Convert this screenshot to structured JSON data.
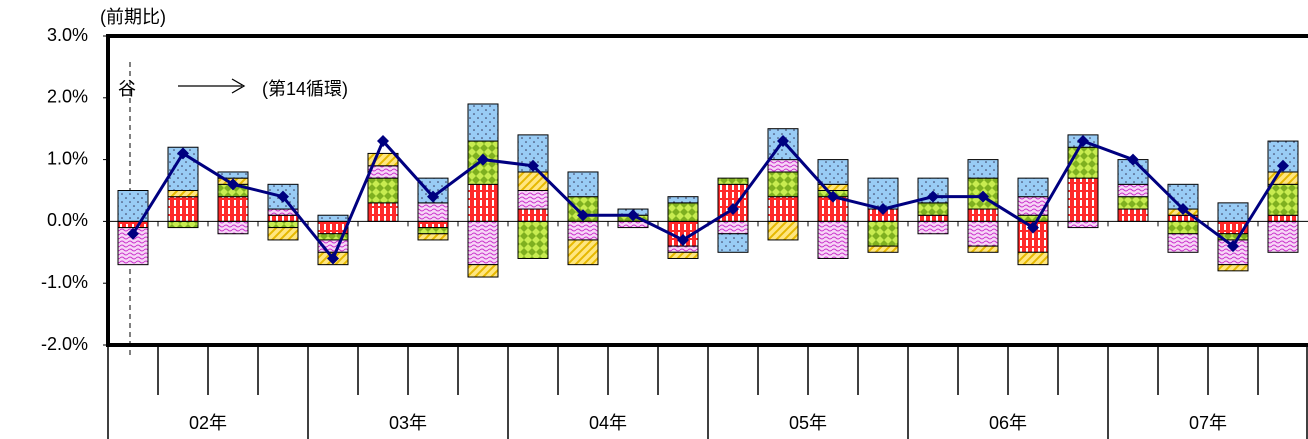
{
  "chart_data": {
    "type": "bar",
    "stacked": true,
    "y_label": "(前期比)",
    "annotations": [
      "谷",
      "(第14循環)"
    ],
    "categories": [
      null,
      null,
      null,
      null,
      null,
      null,
      null,
      null,
      null,
      null,
      null,
      null,
      null,
      null,
      null,
      null,
      null,
      null,
      null,
      null,
      null,
      null,
      null,
      null
    ],
    "year_labels": [
      "02年",
      "03年",
      "04年",
      "05年",
      "06年",
      "07年"
    ],
    "ylim": [
      -2,
      3
    ],
    "yticks": [
      {
        "value": -2,
        "label": "-2.0%"
      },
      {
        "value": -1,
        "label": "-1.0%"
      },
      {
        "value": 0,
        "label": "0.0%"
      },
      {
        "value": 1,
        "label": "1.0%"
      },
      {
        "value": 2,
        "label": "2.0%"
      },
      {
        "value": 3,
        "label": "3.0%"
      }
    ],
    "series": [
      {
        "color": "#ff2a2a",
        "pattern": "stripes",
        "values": [
          -0.1,
          0.4,
          0.4,
          0.1,
          -0.2,
          0.3,
          -0.1,
          0.6,
          0.2,
          0,
          0,
          -0.4,
          0.6,
          0.4,
          0.4,
          0.2,
          0.1,
          0.2,
          -0.5,
          0.7,
          0.2,
          0.1,
          -0.2,
          0.1
        ]
      },
      {
        "color": "#c8ec50",
        "pattern": "diamonds",
        "values": [
          0,
          -0.1,
          0.2,
          -0.1,
          -0.1,
          0.4,
          -0.1,
          0.7,
          -0.6,
          0.4,
          0.1,
          0.3,
          0.1,
          0.4,
          0.1,
          -0.4,
          0.2,
          0.5,
          0.1,
          0.5,
          0.2,
          -0.2,
          -0.1,
          0.5
        ]
      },
      {
        "color": "#f6d6f6",
        "pattern": "waves",
        "values": [
          -0.6,
          0,
          -0.2,
          0.1,
          -0.2,
          0.2,
          0.3,
          -0.7,
          0.3,
          -0.3,
          -0.1,
          -0.1,
          -0.2,
          0.2,
          -0.6,
          0,
          -0.2,
          -0.4,
          0.3,
          -0.1,
          0.2,
          -0.3,
          -0.4,
          -0.5
        ]
      },
      {
        "color": "#ffe680",
        "pattern": "hatch",
        "values": [
          0,
          0.1,
          0.1,
          -0.2,
          -0.2,
          0.2,
          -0.1,
          -0.2,
          0.3,
          -0.4,
          0,
          -0.1,
          0,
          -0.3,
          0.1,
          -0.1,
          0,
          -0.1,
          -0.2,
          0,
          0,
          0.1,
          -0.1,
          0.2
        ]
      },
      {
        "color": "#99ccf5",
        "pattern": "dots",
        "values": [
          0.5,
          0.7,
          0.1,
          0.4,
          0.1,
          0,
          0.4,
          0.6,
          0.6,
          0.4,
          0.1,
          0.1,
          -0.3,
          0.5,
          0.4,
          0.5,
          0.4,
          0.3,
          0.3,
          0.2,
          0.4,
          0.4,
          0.3,
          0.5
        ]
      }
    ],
    "line": {
      "color": "#000080",
      "values": [
        -0.2,
        1.1,
        0.6,
        0.4,
        -0.6,
        1.3,
        0.4,
        1.0,
        0.9,
        0.1,
        0.1,
        -0.3,
        0.2,
        1.3,
        0.4,
        0.2,
        0.4,
        0.4,
        -0.1,
        1.3,
        1.0,
        0.2,
        -0.4,
        0.9
      ]
    }
  }
}
